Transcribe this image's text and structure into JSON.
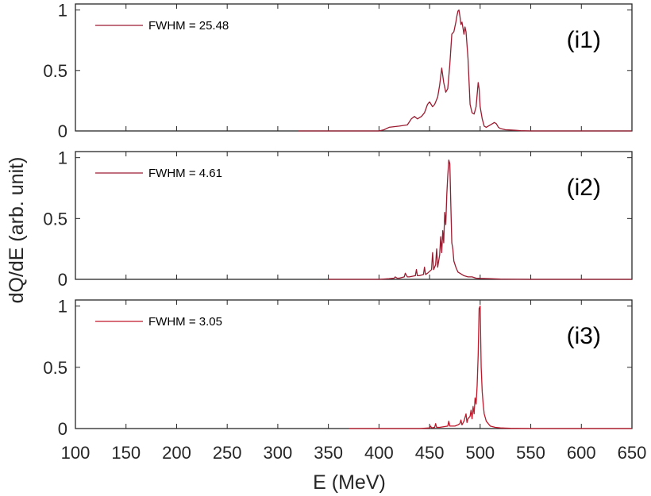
{
  "chart_data": [
    {
      "type": "line",
      "panel_label": "(i1)",
      "xlim": [
        100,
        650
      ],
      "ylim": [
        0,
        1.05
      ],
      "yticks": [
        "0",
        "0.5",
        "1"
      ],
      "series": [
        {
          "name": "FWHM = 25.48",
          "color": "#9b1b30",
          "x": [
            320,
            400,
            405,
            410,
            420,
            428,
            432,
            435,
            438,
            442,
            445,
            448,
            450,
            453,
            455,
            458,
            460,
            462,
            464,
            466,
            468,
            470,
            472,
            474,
            476,
            477,
            478,
            479,
            480,
            481,
            482,
            483,
            484,
            485,
            486,
            488,
            490,
            492,
            494,
            496,
            497,
            498,
            499,
            500,
            502,
            504,
            506,
            508,
            510,
            512,
            514,
            516,
            518,
            520,
            525,
            530,
            535,
            540,
            550,
            560,
            600,
            650
          ],
          "y": [
            0,
            0,
            0.01,
            0.03,
            0.04,
            0.05,
            0.1,
            0.12,
            0.1,
            0.12,
            0.15,
            0.22,
            0.24,
            0.2,
            0.22,
            0.28,
            0.38,
            0.52,
            0.4,
            0.32,
            0.35,
            0.55,
            0.8,
            0.82,
            0.9,
            0.95,
            0.99,
            1.0,
            0.95,
            0.88,
            0.9,
            0.85,
            0.8,
            0.86,
            0.82,
            0.6,
            0.22,
            0.15,
            0.14,
            0.2,
            0.3,
            0.4,
            0.35,
            0.2,
            0.1,
            0.04,
            0.03,
            0.04,
            0.05,
            0.06,
            0.07,
            0.06,
            0.03,
            0.02,
            0.01,
            0.008,
            0.005,
            0.002,
            0,
            0,
            0,
            0
          ]
        }
      ]
    },
    {
      "type": "line",
      "panel_label": "(i2)",
      "xlim": [
        100,
        650
      ],
      "ylim": [
        0,
        1.05
      ],
      "yticks": [
        "0",
        "0.5",
        "1"
      ],
      "series": [
        {
          "name": "FWHM = 4.61",
          "color": "#9b1b30",
          "x": [
            350,
            400,
            410,
            415,
            416,
            418,
            420,
            425,
            426,
            428,
            430,
            436,
            437,
            438,
            440,
            444,
            445,
            446,
            448,
            452,
            453,
            454,
            456,
            457,
            458,
            460,
            461,
            462,
            463,
            464,
            465,
            466,
            467,
            468,
            469,
            470,
            471,
            472,
            473,
            474,
            476,
            478,
            480,
            484,
            488,
            492,
            496,
            500,
            510,
            520,
            550,
            600,
            650
          ],
          "y": [
            0,
            0,
            0.005,
            0.01,
            0.02,
            0.01,
            0.01,
            0.02,
            0.05,
            0.02,
            0.02,
            0.03,
            0.08,
            0.03,
            0.03,
            0.04,
            0.1,
            0.04,
            0.05,
            0.08,
            0.22,
            0.08,
            0.12,
            0.25,
            0.1,
            0.2,
            0.35,
            0.22,
            0.4,
            0.3,
            0.55,
            0.45,
            0.7,
            0.85,
            0.98,
            0.95,
            0.6,
            0.3,
            0.25,
            0.15,
            0.1,
            0.06,
            0.05,
            0.03,
            0.02,
            0.02,
            0.01,
            0.008,
            0.005,
            0.002,
            0,
            0,
            0
          ]
        }
      ]
    },
    {
      "type": "line",
      "panel_label": "(i3)",
      "xlim": [
        100,
        650
      ],
      "ylim": [
        0,
        1.05
      ],
      "yticks": [
        "0",
        "0.5",
        "1"
      ],
      "series": [
        {
          "name": "FWHM = 3.05",
          "color": "#c0172a",
          "x": [
            370,
            440,
            450,
            451,
            452,
            455,
            456,
            457,
            460,
            468,
            469,
            470,
            475,
            478,
            480,
            481,
            482,
            484,
            486,
            487,
            488,
            490,
            491,
            492,
            493,
            494,
            495,
            496,
            497,
            498,
            499,
            500,
            501,
            502,
            503,
            504,
            506,
            508,
            510,
            515,
            520,
            530,
            550,
            600,
            650
          ],
          "y": [
            0,
            0,
            0.005,
            0.02,
            0.005,
            0.01,
            0.04,
            0.01,
            0.01,
            0.02,
            0.06,
            0.02,
            0.02,
            0.03,
            0.04,
            0.07,
            0.03,
            0.06,
            0.12,
            0.05,
            0.08,
            0.1,
            0.15,
            0.08,
            0.18,
            0.12,
            0.25,
            0.2,
            0.35,
            0.6,
            0.98,
            1.0,
            0.5,
            0.3,
            0.2,
            0.12,
            0.06,
            0.04,
            0.02,
            0.01,
            0.005,
            0.002,
            0,
            0,
            0
          ]
        }
      ]
    }
  ],
  "shared": {
    "xlabel": "E (MeV)",
    "ylabel": "dQ/dE (arb. unit)",
    "xticks": [
      "100",
      "150",
      "200",
      "250",
      "300",
      "350",
      "400",
      "450",
      "500",
      "550",
      "600",
      "650"
    ]
  }
}
